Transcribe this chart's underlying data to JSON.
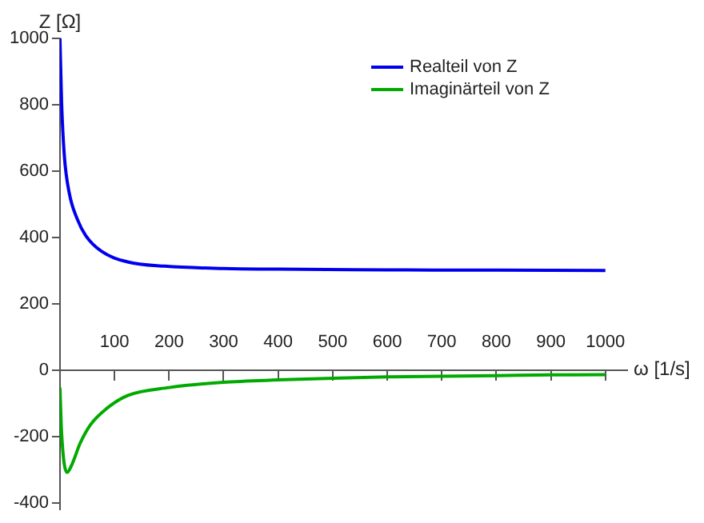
{
  "chart_data": {
    "type": "line",
    "xlabel": "ω [1/s]",
    "ylabel": "Z [Ω]",
    "xlim": [
      0,
      1040
    ],
    "ylim": [
      -420,
      1000
    ],
    "xticks": [
      100,
      200,
      300,
      400,
      500,
      600,
      700,
      800,
      900,
      1000
    ],
    "yticks": [
      -400,
      -200,
      0,
      200,
      400,
      600,
      800,
      1000
    ],
    "grid": false,
    "legend": "top right",
    "marker": "none",
    "line_style": "solid",
    "series": [
      {
        "name": "Realteil von Z",
        "color": "#0000ee",
        "x": [
          0,
          3,
          8,
          17,
          32,
          47,
          76,
          124,
          192,
          300,
          400,
          600,
          800,
          1000
        ],
        "values": [
          1000,
          807,
          647,
          534,
          454,
          406,
          358,
          326,
          313,
          306,
          304,
          302,
          301,
          300
        ]
      },
      {
        "name": "Imaginärteil von Z",
        "color": "#00aa00",
        "x": [
          0,
          3,
          13,
          22,
          37,
          56,
          85,
          124,
          200,
          300,
          400,
          500,
          600,
          700,
          800,
          900,
          1000
        ],
        "values": [
          -53,
          -189,
          -309,
          -285,
          -221,
          -165,
          -117,
          -77,
          -53,
          -37,
          -30,
          -25,
          -21,
          -19,
          -17,
          -15,
          -14
        ]
      }
    ]
  }
}
